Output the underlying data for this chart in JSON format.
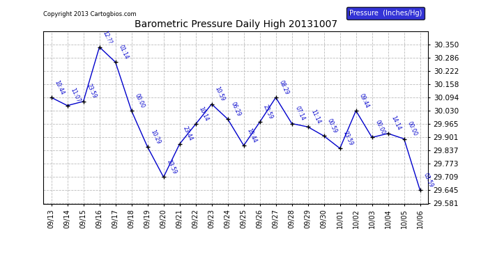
{
  "title": "Barometric Pressure Daily High 20131007",
  "copyright": "Copyright 2013 Cartogbios.com",
  "legend_label": "Pressure  (Inches/Hg)",
  "ylim": [
    29.581,
    30.414
  ],
  "yticks": [
    29.581,
    29.645,
    29.709,
    29.773,
    29.837,
    29.901,
    29.965,
    30.03,
    30.094,
    30.158,
    30.222,
    30.286,
    30.35
  ],
  "line_color": "#0000cc",
  "marker_color": "#000000",
  "bg_color": "#ffffff",
  "grid_color": "#bbbbbb",
  "data_points": [
    {
      "date": "09/13",
      "time": "10:44",
      "value": 30.094
    },
    {
      "date": "09/14",
      "time": "11:07",
      "value": 30.055
    },
    {
      "date": "09/15",
      "time": "23:59",
      "value": 30.075
    },
    {
      "date": "09/16",
      "time": "12:??",
      "value": 30.338
    },
    {
      "date": "09/17",
      "time": "01:14",
      "value": 30.265
    },
    {
      "date": "09/18",
      "time": "00:00",
      "value": 30.03
    },
    {
      "date": "09/19",
      "time": "10:29",
      "value": 29.855
    },
    {
      "date": "09/20",
      "time": "23:59",
      "value": 29.709
    },
    {
      "date": "09/21",
      "time": "23:44",
      "value": 29.869
    },
    {
      "date": "09/22",
      "time": "10:14",
      "value": 29.965
    },
    {
      "date": "09/23",
      "time": "10:59",
      "value": 30.062
    },
    {
      "date": "09/24",
      "time": "06:29",
      "value": 29.99
    },
    {
      "date": "09/25",
      "time": "10:44",
      "value": 29.862
    },
    {
      "date": "09/26",
      "time": "23:59",
      "value": 29.975
    },
    {
      "date": "09/27",
      "time": "08:29",
      "value": 30.094
    },
    {
      "date": "09/28",
      "time": "07:14",
      "value": 29.968
    },
    {
      "date": "09/29",
      "time": "11:14",
      "value": 29.952
    },
    {
      "date": "09/30",
      "time": "00:59",
      "value": 29.908
    },
    {
      "date": "10/01",
      "time": "23:59",
      "value": 29.848
    },
    {
      "date": "10/02",
      "time": "09:44",
      "value": 30.03
    },
    {
      "date": "10/03",
      "time": "00:00",
      "value": 29.901
    },
    {
      "date": "10/04",
      "time": "14:14",
      "value": 29.92
    },
    {
      "date": "10/05",
      "time": "00:00",
      "value": 29.894
    },
    {
      "date": "10/06",
      "time": "03:59",
      "value": 29.645
    }
  ]
}
